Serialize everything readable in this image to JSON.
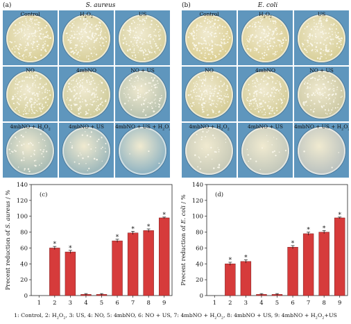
{
  "panel_a": {
    "letter": "(a)",
    "organism": "S. aureus",
    "plates": [
      {
        "label": "Control",
        "density": 1.0,
        "tint": "#d9cf97"
      },
      {
        "label": "H2O2",
        "density": 0.95,
        "tint": "#d8cf9a"
      },
      {
        "label": "US",
        "density": 0.9,
        "tint": "#d7d09e"
      },
      {
        "label": "NO",
        "density": 1.0,
        "tint": "#d3cd98"
      },
      {
        "label": "4mbNO",
        "density": 0.95,
        "tint": "#d0cc9c"
      },
      {
        "label": "NO + US",
        "density": 0.55,
        "tint": "#b9c3b0"
      },
      {
        "label": "4mbNO + H2O2",
        "density": 0.3,
        "tint": "#a9bcb5"
      },
      {
        "label": "4mbNO + US",
        "density": 0.2,
        "tint": "#9eb8bb"
      },
      {
        "label": "4mbNO + US + H2O2",
        "density": 0.02,
        "tint": "#91b4c2"
      }
    ]
  },
  "panel_b": {
    "letter": "(b)",
    "organism": "E. coli",
    "plates": [
      {
        "label": "Control",
        "density": 1.0,
        "tint": "#dccf93"
      },
      {
        "label": "H2O2",
        "density": 1.0,
        "tint": "#dbcf95"
      },
      {
        "label": "US",
        "density": 1.0,
        "tint": "#d8cf98"
      },
      {
        "label": "NO",
        "density": 1.0,
        "tint": "#d6cd98"
      },
      {
        "label": "4mbNO",
        "density": 0.95,
        "tint": "#d5cd99"
      },
      {
        "label": "NO + US",
        "density": 0.75,
        "tint": "#ccc8a3"
      },
      {
        "label": "4mbNO + H2O2",
        "density": 0.2,
        "tint": "#c8cab8"
      },
      {
        "label": "4mbNO + US",
        "density": 0.1,
        "tint": "#c3c8bb"
      },
      {
        "label": "4mbNO + US + H2O2",
        "density": 0.02,
        "tint": "#bcc3c0"
      }
    ]
  },
  "chart_data": [
    {
      "type": "bar",
      "panel": "(c)",
      "ylabel_prefix": "Precent reduction of ",
      "ylabel_organism": "S. aureus",
      "ylabel_suffix": " / %",
      "categories": [
        "1",
        "2",
        "3",
        "4",
        "5",
        "6",
        "7",
        "8",
        "9"
      ],
      "values": [
        0,
        60,
        55,
        1.5,
        1.5,
        69,
        79,
        82,
        98
      ],
      "errors": [
        0,
        2,
        2,
        1,
        1,
        2,
        2,
        2,
        1
      ],
      "significant": [
        false,
        true,
        true,
        false,
        false,
        true,
        true,
        true,
        true
      ],
      "ylim": [
        0,
        140
      ],
      "yticks": [
        0,
        20,
        40,
        60,
        80,
        100,
        120,
        140
      ],
      "bar_color": "#d63b3b",
      "marker": "*"
    },
    {
      "type": "bar",
      "panel": "(d)",
      "ylabel_prefix": "Precent reduction of ",
      "ylabel_organism": "E. coli",
      "ylabel_suffix": " / %",
      "categories": [
        "1",
        "2",
        "3",
        "4",
        "5",
        "6",
        "7",
        "8",
        "9"
      ],
      "values": [
        0,
        40,
        43,
        1.5,
        1.5,
        61,
        78,
        80,
        98
      ],
      "errors": [
        0,
        2,
        2,
        1,
        1,
        2,
        2,
        2,
        1
      ],
      "significant": [
        false,
        true,
        true,
        false,
        false,
        true,
        true,
        true,
        true
      ],
      "ylim": [
        0,
        140
      ],
      "yticks": [
        0,
        20,
        40,
        60,
        80,
        100,
        120,
        140
      ],
      "bar_color": "#d63b3b",
      "marker": "*"
    }
  ],
  "legend_text": "1: Control, 2: H2O2, 3: US, 4: NO, 5: 4mbNO, 6: NO + US, 7: 4mbNO + H2O2, 8: 4mbNO + US, 9: 4mbNO + H2O2+US"
}
